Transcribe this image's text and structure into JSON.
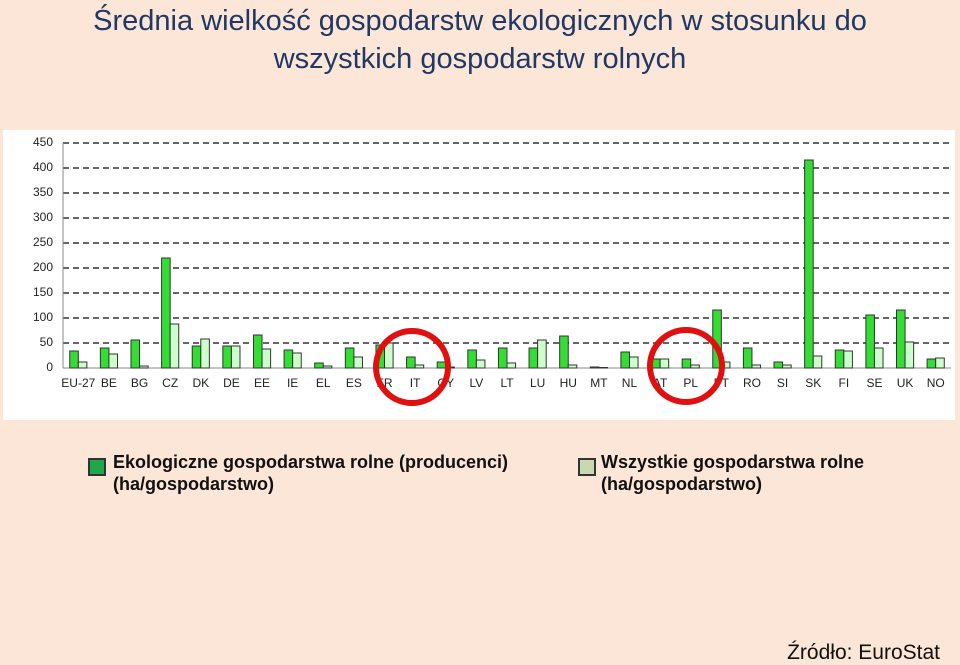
{
  "chart_data": {
    "type": "bar",
    "title": "Średnia wielkość gospodarstw ekologicznych w stosunku do wszystkich gospodarstw rolnych",
    "categories": [
      "EU-27",
      "BE",
      "BG",
      "CZ",
      "DK",
      "DE",
      "EE",
      "IE",
      "EL",
      "ES",
      "FR",
      "IT",
      "CY",
      "LV",
      "LT",
      "LU",
      "HU",
      "MT",
      "NL",
      "AT",
      "PL",
      "PT",
      "RO",
      "SI",
      "SK",
      "FI",
      "SE",
      "UK",
      "NO"
    ],
    "series": [
      {
        "name": "Ekologiczne gospodarstwa rolne (producenci) (ha/gospodarstwo)",
        "color": "#33dd33",
        "values": [
          34,
          40,
          56,
          220,
          44,
          44,
          66,
          36,
          10,
          40,
          46,
          22,
          12,
          36,
          40,
          40,
          64,
          2,
          32,
          18,
          18,
          116,
          40,
          12,
          416,
          36,
          106,
          116,
          18
        ]
      },
      {
        "name": "Wszystkie gospodarstwa rolne (ha/gospodarstwo)",
        "color": "#ccffcc",
        "values": [
          12,
          28,
          4,
          88,
          58,
          44,
          38,
          30,
          4,
          22,
          50,
          6,
          2,
          16,
          10,
          56,
          6,
          1,
          22,
          18,
          6,
          12,
          6,
          6,
          24,
          34,
          40,
          52,
          20
        ]
      }
    ],
    "ylim": [
      0,
      450
    ],
    "yticks": [
      0,
      50,
      100,
      150,
      200,
      250,
      300,
      350,
      400,
      450
    ],
    "grid": true,
    "source": "Źródło: EuroStat"
  }
}
